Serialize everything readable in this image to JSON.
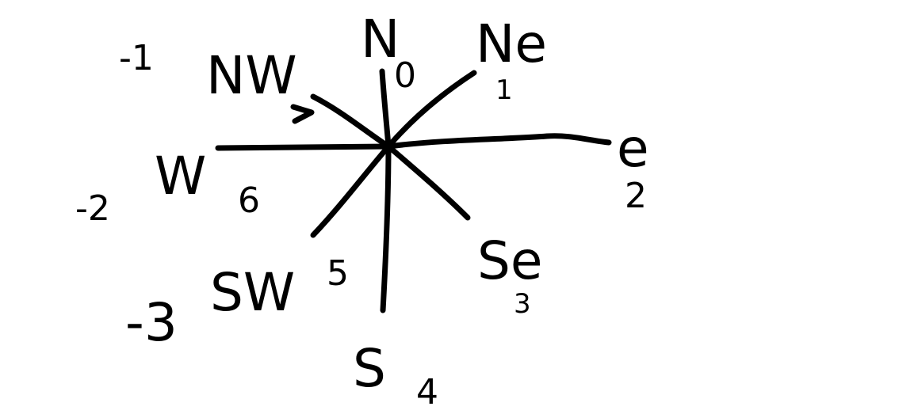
{
  "colors": {
    "ink": "#000000",
    "background": "#ffffff"
  },
  "directions": {
    "N": {
      "label": "N",
      "number": "0"
    },
    "NE": {
      "label": "Ne",
      "number": "1"
    },
    "E": {
      "label": "e",
      "number": "2"
    },
    "SE": {
      "label": "Se",
      "number": "3"
    },
    "S": {
      "label": "S",
      "number": "4"
    },
    "SW": {
      "label": "SW",
      "number": "5"
    },
    "W": {
      "label": "W",
      "number": "6"
    },
    "NW": {
      "label": "NW",
      "number": ""
    }
  },
  "negative_numbers": {
    "NW": "-1",
    "W": "-2",
    "SW": "-3"
  }
}
